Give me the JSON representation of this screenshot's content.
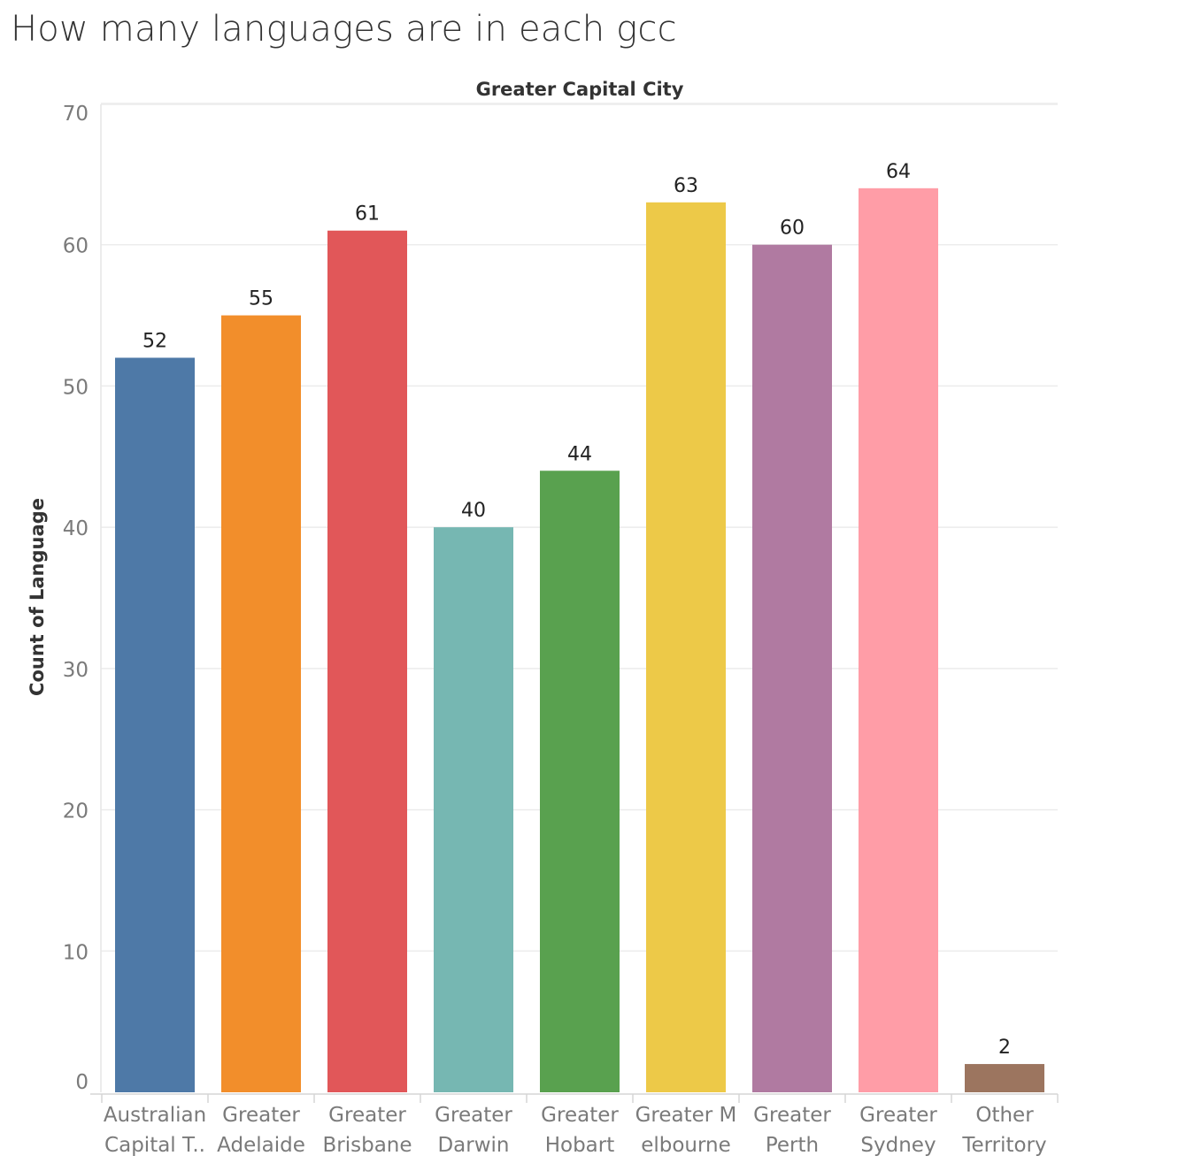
{
  "chart_data": {
    "type": "bar",
    "title": "How many languages are in each gcc",
    "column_header": "Greater Capital City",
    "ylabel": "Count of Language",
    "ylim": [
      0,
      70
    ],
    "yticks": [
      "0",
      "10",
      "20",
      "30",
      "40",
      "50",
      "60",
      "70"
    ],
    "categories": [
      [
        "Australian",
        "Capital T.."
      ],
      [
        "Greater",
        "Adelaide"
      ],
      [
        "Greater",
        "Brisbane"
      ],
      [
        "Greater",
        "Darwin"
      ],
      [
        "Greater",
        "Hobart"
      ],
      [
        "Greater M",
        "elbourne"
      ],
      [
        "Greater",
        "Perth"
      ],
      [
        "Greater",
        "Sydney"
      ],
      [
        "Other",
        "Territory"
      ]
    ],
    "values": [
      52,
      55,
      61,
      40,
      44,
      63,
      60,
      64,
      2
    ],
    "colors": [
      "#4e79a7",
      "#f28e2b",
      "#e15759",
      "#76b7b2",
      "#59a14f",
      "#edc948",
      "#b07aa1",
      "#ff9da7",
      "#9c755f"
    ],
    "grid": true,
    "legend": "none"
  }
}
